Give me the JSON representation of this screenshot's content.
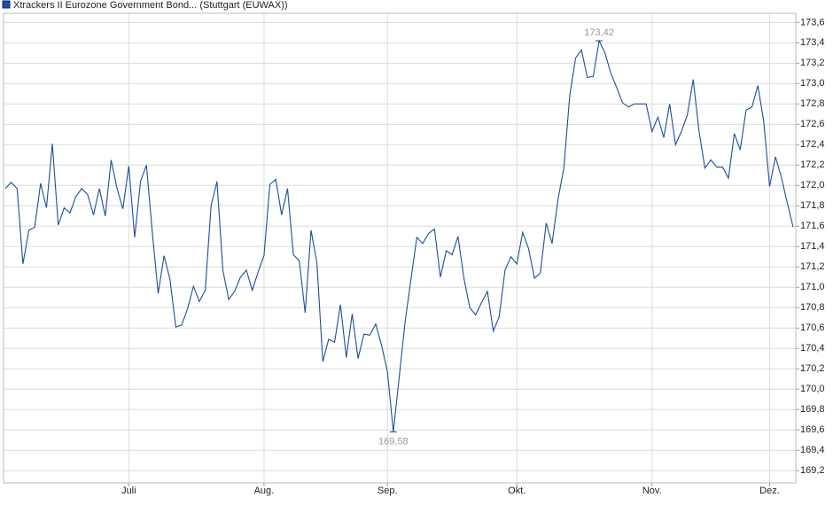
{
  "chart_data": {
    "type": "line",
    "categories": [
      null,
      null,
      null,
      null,
      null,
      null,
      null,
      null,
      null,
      null,
      null,
      null,
      null,
      null,
      null,
      null,
      null,
      null,
      null,
      null,
      null,
      "Juli",
      null,
      null,
      null,
      null,
      null,
      null,
      null,
      null,
      null,
      null,
      null,
      null,
      null,
      null,
      null,
      null,
      null,
      null,
      null,
      null,
      null,
      null,
      "Aug.",
      null,
      null,
      null,
      null,
      null,
      null,
      null,
      null,
      null,
      null,
      null,
      null,
      null,
      null,
      null,
      null,
      null,
      null,
      null,
      null,
      "Sep.",
      null,
      null,
      null,
      null,
      null,
      null,
      null,
      null,
      null,
      null,
      null,
      null,
      null,
      null,
      null,
      null,
      null,
      null,
      null,
      null,
      null,
      "Okt.",
      null,
      null,
      null,
      null,
      null,
      null,
      null,
      null,
      null,
      null,
      null,
      null,
      null,
      null,
      null,
      null,
      null,
      null,
      null,
      null,
      null,
      null,
      "Nov.",
      null,
      null,
      null,
      null,
      null,
      null,
      null,
      null,
      null,
      null,
      null,
      null,
      null,
      null,
      null,
      null,
      null,
      null,
      null,
      "Dez.",
      null,
      null,
      null,
      null
    ],
    "series": [
      {
        "name": "Xtrackers II Eurozone Government Bond... (Stuttgart (EUWAX))",
        "color": "#1c4e9c",
        "values": [
          171.97,
          172.03,
          171.97,
          171.23,
          171.56,
          171.59,
          172.02,
          171.78,
          172.41,
          171.61,
          171.78,
          171.73,
          171.89,
          171.97,
          171.91,
          171.71,
          171.97,
          171.7,
          172.25,
          171.97,
          171.77,
          172.19,
          171.49,
          172.04,
          172.2,
          171.54,
          170.94,
          171.31,
          171.08,
          170.61,
          170.63,
          170.79,
          171.01,
          170.86,
          170.97,
          171.8,
          172.04,
          171.17,
          170.88,
          170.96,
          171.1,
          171.17,
          170.97,
          171.15,
          171.31,
          172.01,
          172.06,
          171.71,
          171.97,
          171.32,
          171.26,
          170.75,
          171.56,
          171.24,
          170.27,
          170.49,
          170.46,
          170.83,
          170.31,
          170.74,
          170.3,
          170.54,
          170.53,
          170.64,
          170.43,
          170.17,
          169.58,
          170.12,
          170.66,
          171.08,
          171.49,
          171.43,
          171.53,
          171.57,
          171.1,
          171.36,
          171.32,
          171.5,
          171.09,
          170.8,
          170.73,
          170.85,
          170.96,
          170.57,
          170.71,
          171.17,
          171.3,
          171.23,
          171.54,
          171.38,
          171.09,
          171.14,
          171.63,
          171.43,
          171.86,
          172.17,
          172.88,
          173.25,
          173.33,
          173.06,
          173.07,
          173.42,
          173.3,
          173.1,
          172.96,
          172.81,
          172.77,
          172.8,
          172.8,
          172.8,
          172.53,
          172.67,
          172.47,
          172.8,
          172.4,
          172.53,
          172.69,
          173.04,
          172.53,
          172.17,
          172.25,
          172.18,
          172.18,
          172.07,
          172.51,
          172.35,
          172.74,
          172.77,
          172.98,
          172.63,
          171.99,
          172.28,
          172.08,
          171.83,
          171.59
        ]
      }
    ],
    "annotations": [
      {
        "value": 173.42,
        "label": "173,42",
        "position": "above"
      },
      {
        "value": 169.58,
        "label": "169,58",
        "position": "below"
      }
    ],
    "ylim": [
      169.08,
      173.69
    ],
    "yticks": [
      {
        "value": 169.2,
        "label": "169,2"
      },
      {
        "value": 169.4,
        "label": "169,4"
      },
      {
        "value": 169.6,
        "label": "169,6"
      },
      {
        "value": 169.8,
        "label": "169,8"
      },
      {
        "value": 170.0,
        "label": "170,0"
      },
      {
        "value": 170.2,
        "label": "170,2"
      },
      {
        "value": 170.4,
        "label": "170,4"
      },
      {
        "value": 170.6,
        "label": "170,6"
      },
      {
        "value": 170.8,
        "label": "170,8"
      },
      {
        "value": 171.0,
        "label": "171,0"
      },
      {
        "value": 171.2,
        "label": "171,2"
      },
      {
        "value": 171.4,
        "label": "171,4"
      },
      {
        "value": 171.6,
        "label": "171,6"
      },
      {
        "value": 171.8,
        "label": "171,8"
      },
      {
        "value": 172.0,
        "label": "172,0"
      },
      {
        "value": 172.2,
        "label": "172,2"
      },
      {
        "value": 172.4,
        "label": "172,4"
      },
      {
        "value": 172.6,
        "label": "172,6"
      },
      {
        "value": 172.8,
        "label": "172,8"
      },
      {
        "value": 173.0,
        "label": "173,0"
      },
      {
        "value": 173.2,
        "label": "173,2"
      },
      {
        "value": 173.4,
        "label": "173,4"
      },
      {
        "value": 173.6,
        "label": "173,6"
      }
    ],
    "grid": true,
    "legend": "top-left"
  }
}
